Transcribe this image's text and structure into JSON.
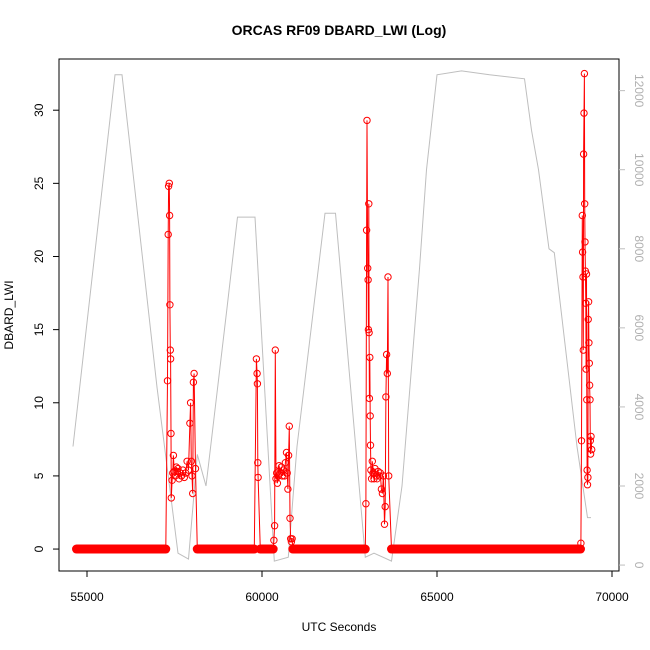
{
  "chart_data": {
    "type": "scatter",
    "title": "ORCAS RF09 DBARD_LWI (Log)",
    "xlabel": "UTC Seconds",
    "ylabel": "DBARD_LWI",
    "xlim": [
      54200,
      70200
    ],
    "ylim": [
      -1.5,
      33.5
    ],
    "y2lim": [
      -150,
      12800
    ],
    "xticks": [
      55000,
      60000,
      65000,
      70000
    ],
    "yticks": [
      0,
      5,
      10,
      15,
      20,
      25,
      30
    ],
    "y2ticks": [
      0,
      2000,
      4000,
      6000,
      8000,
      10000,
      12000
    ],
    "grid": false,
    "legend": "none",
    "colors": {
      "primary": "#ff0000",
      "secondary": "#bebebe",
      "axis": "#000000"
    },
    "series": [
      {
        "axis": "left",
        "style": "line+points",
        "color": "#ff0000",
        "zero_runs": [
          [
            54700,
            57250
          ],
          [
            58150,
            59780
          ],
          [
            59950,
            60320
          ],
          [
            60880,
            62950
          ],
          [
            63700,
            69100
          ]
        ],
        "points": [
          [
            57250,
            0
          ],
          [
            57300,
            11.5
          ],
          [
            57320,
            21.5
          ],
          [
            57330,
            24.8
          ],
          [
            57350,
            25
          ],
          [
            57360,
            22.8
          ],
          [
            57370,
            16.7
          ],
          [
            57380,
            13.6
          ],
          [
            57390,
            13
          ],
          [
            57400,
            7.9
          ],
          [
            57410,
            3.5
          ],
          [
            57430,
            4.7
          ],
          [
            57450,
            5.2
          ],
          [
            57470,
            6.4
          ],
          [
            57490,
            5.3
          ],
          [
            57520,
            5.0
          ],
          [
            57550,
            5.6
          ],
          [
            57580,
            5.3
          ],
          [
            57600,
            5.5
          ],
          [
            57630,
            4.8
          ],
          [
            57660,
            5.2
          ],
          [
            57700,
            5.0
          ],
          [
            57740,
            5.4
          ],
          [
            57780,
            4.9
          ],
          [
            57820,
            5.2
          ],
          [
            57860,
            6.0
          ],
          [
            57900,
            5.4
          ],
          [
            57940,
            8.6
          ],
          [
            57960,
            10.0
          ],
          [
            57980,
            6.0
          ],
          [
            58000,
            5.0
          ],
          [
            58020,
            3.8
          ],
          [
            58040,
            11.4
          ],
          [
            58060,
            12.0
          ],
          [
            58100,
            5.5
          ],
          [
            58150,
            0
          ],
          [
            59780,
            0
          ],
          [
            59840,
            13.0
          ],
          [
            59860,
            12.0
          ],
          [
            59870,
            11.3
          ],
          [
            59880,
            5.9
          ],
          [
            59890,
            4.9
          ],
          [
            59950,
            0
          ],
          [
            60320,
            0
          ],
          [
            60340,
            0.6
          ],
          [
            60360,
            1.6
          ],
          [
            60380,
            13.6
          ],
          [
            60400,
            4.8
          ],
          [
            60420,
            5.2
          ],
          [
            60440,
            4.5
          ],
          [
            60460,
            5.0
          ],
          [
            60490,
            5.7
          ],
          [
            60520,
            5.2
          ],
          [
            60550,
            5.6
          ],
          [
            60580,
            5.0
          ],
          [
            60610,
            5.4
          ],
          [
            60640,
            5.0
          ],
          [
            60670,
            5.9
          ],
          [
            60700,
            6.6
          ],
          [
            60720,
            5.2
          ],
          [
            60740,
            4.1
          ],
          [
            60760,
            6.4
          ],
          [
            60780,
            8.4
          ],
          [
            60800,
            2.1
          ],
          [
            60820,
            0.7
          ],
          [
            60840,
            0.5
          ],
          [
            60860,
            0.7
          ],
          [
            60880,
            0
          ],
          [
            62950,
            0
          ],
          [
            62970,
            3.1
          ],
          [
            62990,
            21.8
          ],
          [
            63000,
            29.3
          ],
          [
            63020,
            19.2
          ],
          [
            63030,
            18.4
          ],
          [
            63040,
            15.0
          ],
          [
            63050,
            23.6
          ],
          [
            63060,
            14.8
          ],
          [
            63070,
            10.3
          ],
          [
            63080,
            13.1
          ],
          [
            63090,
            9.1
          ],
          [
            63100,
            7.1
          ],
          [
            63110,
            5.4
          ],
          [
            63130,
            4.8
          ],
          [
            63150,
            6.0
          ],
          [
            63170,
            5.2
          ],
          [
            63200,
            4.8
          ],
          [
            63230,
            5.5
          ],
          [
            63260,
            5.0
          ],
          [
            63290,
            4.8
          ],
          [
            63320,
            5.3
          ],
          [
            63350,
            5.0
          ],
          [
            63380,
            5.2
          ],
          [
            63410,
            4.1
          ],
          [
            63440,
            3.8
          ],
          [
            63470,
            5.0
          ],
          [
            63500,
            1.7
          ],
          [
            63520,
            2.9
          ],
          [
            63540,
            10.4
          ],
          [
            63560,
            13.3
          ],
          [
            63580,
            12.0
          ],
          [
            63600,
            18.6
          ],
          [
            63620,
            5.0
          ],
          [
            63700,
            0
          ],
          [
            69100,
            0
          ],
          [
            69110,
            0.4
          ],
          [
            69130,
            7.4
          ],
          [
            69150,
            22.8
          ],
          [
            69160,
            20.3
          ],
          [
            69170,
            18.6
          ],
          [
            69180,
            13.6
          ],
          [
            69190,
            27.0
          ],
          [
            69200,
            29.8
          ],
          [
            69210,
            32.5
          ],
          [
            69220,
            23.6
          ],
          [
            69230,
            21.0
          ],
          [
            69240,
            19.0
          ],
          [
            69250,
            16.8
          ],
          [
            69260,
            12.3
          ],
          [
            69270,
            18.8
          ],
          [
            69280,
            10.2
          ],
          [
            69290,
            5.4
          ],
          [
            69300,
            4.4
          ],
          [
            69310,
            4.9
          ],
          [
            69320,
            15.7
          ],
          [
            69330,
            16.9
          ],
          [
            69340,
            14.1
          ],
          [
            69350,
            12.7
          ],
          [
            69360,
            11.2
          ],
          [
            69370,
            10.2
          ],
          [
            69380,
            7.4
          ],
          [
            69390,
            6.5
          ],
          [
            69400,
            7.7
          ],
          [
            69420,
            6.8
          ]
        ]
      },
      {
        "axis": "right",
        "style": "line",
        "color": "#bebebe",
        "points": [
          [
            54600,
            3000
          ],
          [
            55800,
            12400
          ],
          [
            56000,
            12400
          ],
          [
            57000,
            4500
          ],
          [
            57600,
            300
          ],
          [
            57900,
            150
          ],
          [
            58150,
            2800
          ],
          [
            58400,
            2000
          ],
          [
            59000,
            6500
          ],
          [
            59300,
            8800
          ],
          [
            59800,
            8800
          ],
          [
            60350,
            100
          ],
          [
            60750,
            200
          ],
          [
            61000,
            3000
          ],
          [
            61800,
            8900
          ],
          [
            62100,
            8900
          ],
          [
            62950,
            200
          ],
          [
            63200,
            300
          ],
          [
            63700,
            100
          ],
          [
            64000,
            2000
          ],
          [
            64500,
            7500
          ],
          [
            64700,
            10000
          ],
          [
            65000,
            12400
          ],
          [
            65700,
            12500
          ],
          [
            66500,
            12400
          ],
          [
            67500,
            12300
          ],
          [
            67700,
            11000
          ],
          [
            67900,
            10000
          ],
          [
            68200,
            8000
          ],
          [
            68350,
            7900
          ],
          [
            69000,
            3000
          ],
          [
            69300,
            1200
          ],
          [
            69400,
            1200
          ]
        ]
      }
    ]
  }
}
